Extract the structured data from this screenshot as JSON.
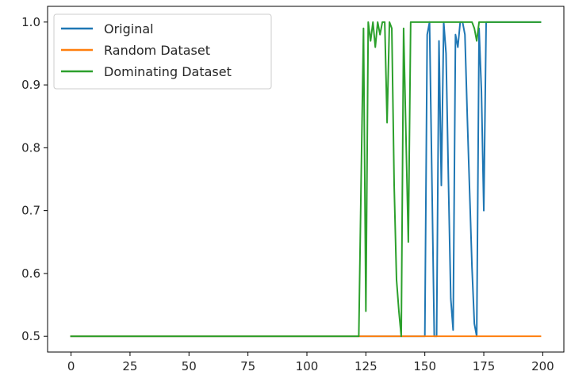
{
  "chart_data": {
    "type": "line",
    "xlim": [
      -9.95,
      208.95
    ],
    "ylim": [
      0.475,
      1.025
    ],
    "x_ticks": [
      "0",
      "25",
      "50",
      "75",
      "100",
      "125",
      "150",
      "175",
      "200"
    ],
    "y_ticks": [
      "0.5",
      "0.6",
      "0.7",
      "0.8",
      "0.9",
      "1.0"
    ],
    "grid": false,
    "legend_placement": "upper-left",
    "series": [
      {
        "name": "Original",
        "color": "#1f77b4",
        "points": [
          [
            0,
            0.5
          ],
          [
            150,
            0.5
          ],
          [
            151,
            0.98
          ],
          [
            152,
            1.0
          ],
          [
            154,
            0.5
          ],
          [
            155,
            0.5
          ],
          [
            156,
            0.97
          ],
          [
            157,
            0.74
          ],
          [
            158,
            1.0
          ],
          [
            159,
            0.95
          ],
          [
            160,
            0.75
          ],
          [
            161,
            0.56
          ],
          [
            162,
            0.51
          ],
          [
            163,
            0.98
          ],
          [
            164,
            0.96
          ],
          [
            165,
            1.0
          ],
          [
            166,
            1.0
          ],
          [
            167,
            0.98
          ],
          [
            168,
            0.85
          ],
          [
            170,
            0.61
          ],
          [
            171,
            0.52
          ],
          [
            172,
            0.5
          ],
          [
            173,
            0.99
          ],
          [
            174,
            0.89
          ],
          [
            175,
            0.7
          ],
          [
            176,
            1.0
          ],
          [
            199,
            1.0
          ]
        ]
      },
      {
        "name": "Random Dataset",
        "color": "#ff7f0e",
        "points": [
          [
            0,
            0.5
          ],
          [
            199,
            0.5
          ]
        ]
      },
      {
        "name": "Dominating Dataset",
        "color": "#2ca02c",
        "points": [
          [
            0,
            0.5
          ],
          [
            122,
            0.5
          ],
          [
            123,
            0.75
          ],
          [
            124,
            0.99
          ],
          [
            125,
            0.54
          ],
          [
            126,
            1.0
          ],
          [
            127,
            0.97
          ],
          [
            128,
            1.0
          ],
          [
            129,
            0.96
          ],
          [
            130,
            1.0
          ],
          [
            131,
            0.98
          ],
          [
            132,
            1.0
          ],
          [
            133,
            1.0
          ],
          [
            134,
            0.84
          ],
          [
            135,
            1.0
          ],
          [
            136,
            0.99
          ],
          [
            137,
            0.74
          ],
          [
            138,
            0.59
          ],
          [
            139,
            0.54
          ],
          [
            140,
            0.5
          ],
          [
            141,
            0.99
          ],
          [
            142,
            0.82
          ],
          [
            143,
            0.65
          ],
          [
            144,
            1.0
          ],
          [
            150,
            1.0
          ],
          [
            152,
            1.0
          ],
          [
            165,
            1.0
          ],
          [
            170,
            1.0
          ],
          [
            171,
            0.99
          ],
          [
            172,
            0.97
          ],
          [
            173,
            1.0
          ],
          [
            199,
            1.0
          ]
        ]
      }
    ]
  }
}
